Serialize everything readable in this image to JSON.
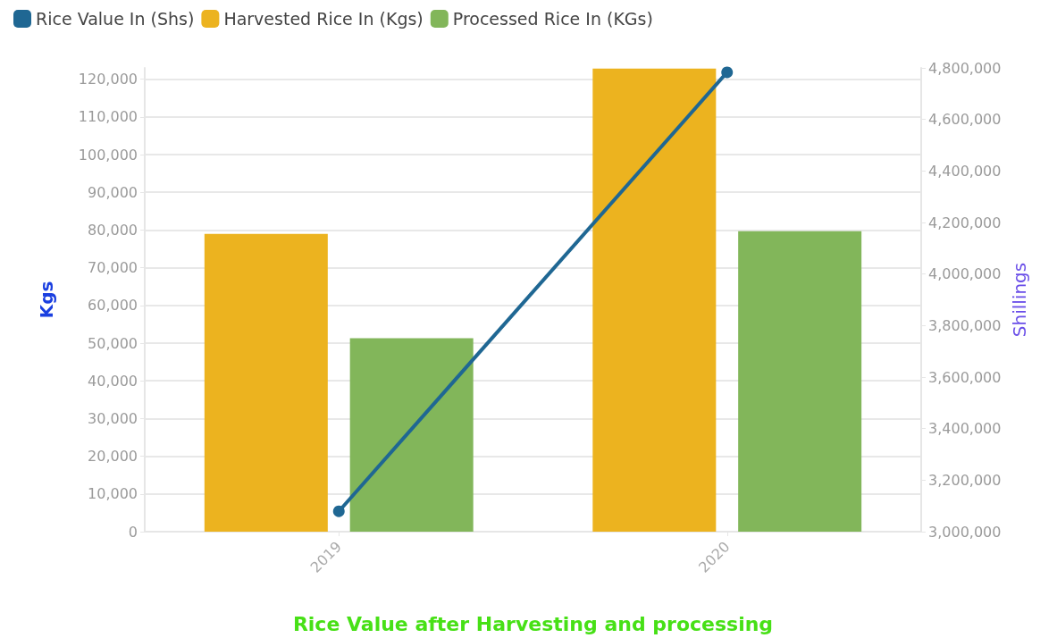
{
  "chart_data": {
    "type": "bar",
    "xlabel": "Rice Value after Harvesting and processing",
    "ylabel": "Kgs",
    "y2label": "Shillings",
    "categories": [
      "2019",
      "2020"
    ],
    "series": [
      {
        "name": "Rice Value In (Shs)",
        "type": "line",
        "axis": "y2",
        "color": "#1f6793",
        "values": [
          3079000,
          4783000
        ]
      },
      {
        "name": "Harvested Rice In (Kgs)",
        "color": "#ecb31f",
        "values": [
          79000,
          122800
        ]
      },
      {
        "name": "Processed Rice In (KGs)",
        "color": "#82b65a",
        "values": [
          51300,
          79700
        ]
      }
    ],
    "ylim": [
      0,
      123000
    ],
    "yticks": [
      0,
      {
        "value": 10000,
        "label": "10,000"
      },
      {
        "value": 20000,
        "label": "20,000"
      },
      {
        "value": 30000,
        "label": "30,000"
      },
      {
        "value": 40000,
        "label": "40,000"
      },
      {
        "value": 50000,
        "label": "50,000"
      },
      {
        "value": 60000,
        "label": "60,000"
      },
      {
        "value": 70000,
        "label": "70,000"
      },
      {
        "value": 80000,
        "label": "80,000"
      },
      {
        "value": 90000,
        "label": "90,000"
      },
      {
        "value": 100000,
        "label": "100,000"
      },
      {
        "value": 110000,
        "label": "110,000"
      },
      {
        "value": 120000,
        "label": "120,000"
      }
    ],
    "y2lim": [
      3000000,
      4800000
    ],
    "y2ticks": [
      {
        "value": 3000000,
        "label": "3,000,000"
      },
      {
        "value": 3200000,
        "label": "3,200,000"
      },
      {
        "value": 3400000,
        "label": "3,400,000"
      },
      {
        "value": 3600000,
        "label": "3,600,000"
      },
      {
        "value": 3800000,
        "label": "3,800,000"
      },
      {
        "value": 4000000,
        "label": "4,000,000"
      },
      {
        "value": 4200000,
        "label": "4,200,000"
      },
      {
        "value": 4400000,
        "label": "4,400,000"
      },
      {
        "value": 4600000,
        "label": "4,600,000"
      },
      {
        "value": 4800000,
        "label": "4,800,000"
      }
    ],
    "grid": "y",
    "legend": "top left",
    "marker": "circle"
  }
}
